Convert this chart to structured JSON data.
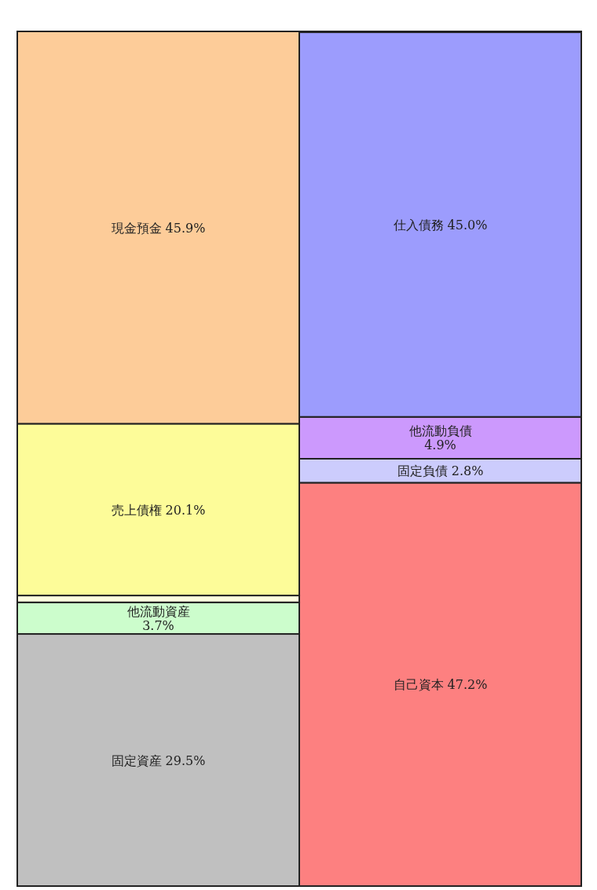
{
  "chart_data": {
    "type": "bar",
    "stacked": true,
    "categories": [
      null,
      null
    ],
    "series": [
      {
        "name": "固定資産",
        "color": "#c0c0c0",
        "values": [
          29.5,
          null
        ],
        "value_labels": [
          "29.5%",
          null
        ]
      },
      {
        "name": "他流動資産",
        "color": "#ccfdcc",
        "values": [
          3.7,
          null
        ],
        "value_labels": [
          "3.7%",
          null
        ]
      },
      {
        "color": "#fdfde0",
        "values": [
          0.8,
          null
        ]
      },
      {
        "name": "売上債権",
        "color": "#fdfc99",
        "values": [
          20.1,
          null
        ],
        "value_labels": [
          "20.1%",
          null
        ]
      },
      {
        "name": "現金預金",
        "color": "#fdcc99",
        "values": [
          45.9,
          null
        ],
        "value_labels": [
          "45.9%",
          null
        ]
      },
      {
        "name": "自己資本",
        "color": "#fd8080",
        "values": [
          null,
          47.2
        ],
        "value_labels": [
          null,
          "47.2%"
        ]
      },
      {
        "name": "固定負債",
        "color": "#ccccfd",
        "values": [
          null,
          2.8
        ],
        "value_labels": [
          null,
          "2.8%"
        ]
      },
      {
        "name": "他流動負債",
        "color": "#cc99fd",
        "values": [
          null,
          4.9
        ],
        "value_labels": [
          null,
          "4.9%"
        ]
      },
      {
        "name": "仕入債務",
        "color": "#9c9cfd",
        "values": [
          null,
          45.0
        ],
        "value_labels": [
          null,
          "45.0%"
        ]
      }
    ]
  }
}
